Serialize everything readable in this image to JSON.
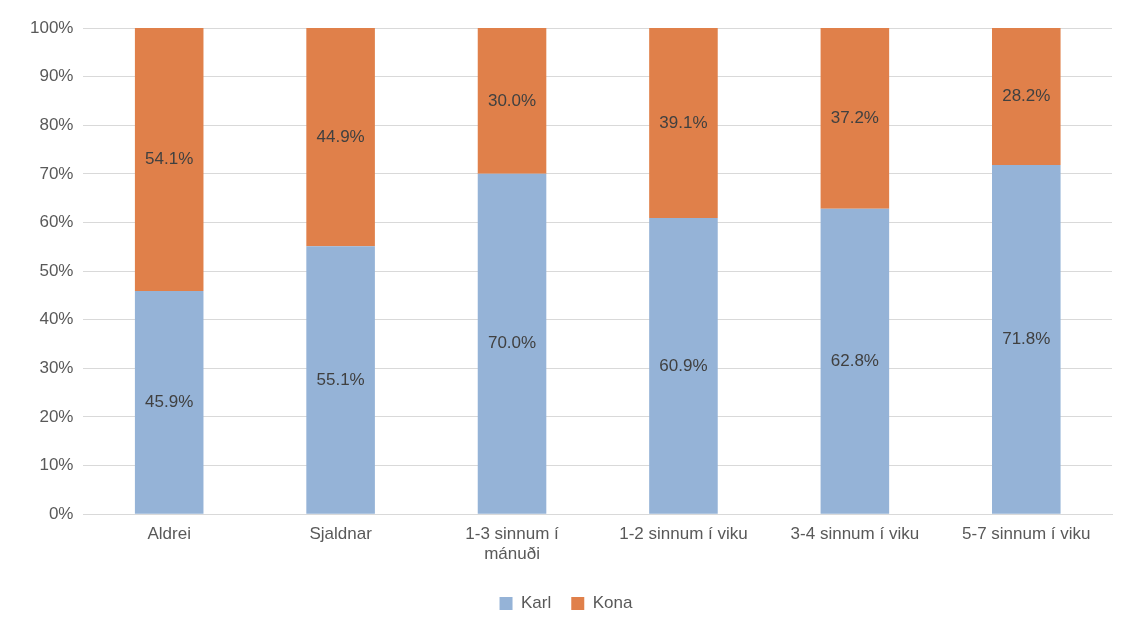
{
  "chart_data": {
    "type": "bar",
    "stacked": true,
    "categories": [
      "Aldrei",
      "Sjaldnar",
      "1-3 sinnum í mánuði",
      "1-2 sinnum í viku",
      "3-4 sinnum í viku",
      "5-7 sinnum í viku"
    ],
    "series": [
      {
        "name": "Karl",
        "color": "#95b3d7",
        "values": [
          45.9,
          55.1,
          70.0,
          60.9,
          62.8,
          71.8
        ],
        "value_labels": [
          "45.9%",
          "55.1%",
          "70.0%",
          "60.9%",
          "62.8%",
          "71.8%"
        ]
      },
      {
        "name": "Kona",
        "color": "#e0804a",
        "values": [
          54.1,
          44.9,
          30.0,
          39.1,
          37.2,
          28.2
        ],
        "value_labels": [
          "54.1%",
          "44.9%",
          "30.0%",
          "39.1%",
          "37.2%",
          "28.2%"
        ]
      }
    ],
    "ylim": [
      0,
      100
    ],
    "yticks": [
      {
        "value": 0,
        "label": "0%"
      },
      {
        "value": 10,
        "label": "10%"
      },
      {
        "value": 20,
        "label": "20%"
      },
      {
        "value": 30,
        "label": "30%"
      },
      {
        "value": 40,
        "label": "40%"
      },
      {
        "value": 50,
        "label": "50%"
      },
      {
        "value": 60,
        "label": "60%"
      },
      {
        "value": 70,
        "label": "70%"
      },
      {
        "value": 80,
        "label": "80%"
      },
      {
        "value": 90,
        "label": "90%"
      },
      {
        "value": 100,
        "label": "100%"
      }
    ],
    "grid": "y",
    "legend": "bottom"
  }
}
